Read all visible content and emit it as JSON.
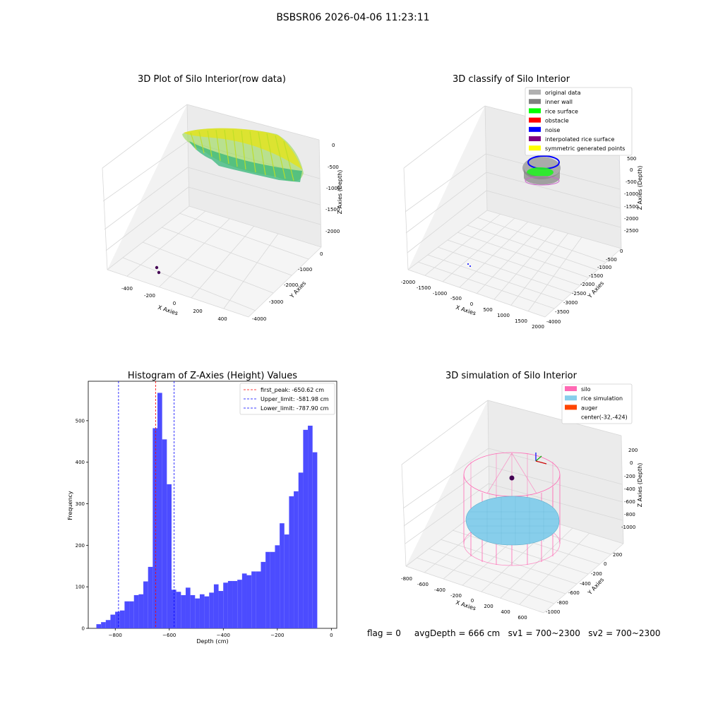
{
  "figure": {
    "suptitle": "BSBSR06 2026-04-06 11:23:11",
    "footer": "flag = 0     avgDepth = 666 cm   sv1 = 700~2300   sv2 = 700~2300"
  },
  "chart_data": [
    {
      "type": "scatter",
      "title": "3D Plot of Silo Interior(row data)",
      "xlabel": "X Axies",
      "ylabel": "Y Axies",
      "zlabel": "Z Axies (Depth)",
      "xticks": [
        "-400",
        "-200",
        "0",
        "200",
        "400"
      ],
      "yticks": [
        "0",
        "-1000",
        "-2000",
        "-3000",
        "-4000"
      ],
      "zticks": [
        "0",
        "-500",
        "-1000",
        "-1500",
        "-2000"
      ],
      "colormap": [
        "#440154",
        "#21918c",
        "#5ec962",
        "#fde725"
      ],
      "outlier_points": [
        {
          "x": -230,
          "y": -3700,
          "z": -2250
        },
        {
          "x": -215,
          "y": -3750,
          "z": -2300
        }
      ]
    },
    {
      "type": "scatter",
      "title": "3D classify of Silo Interior",
      "xlabel": "X Axies",
      "ylabel": "Y Axies",
      "zlabel": "Z Axies (Depth)",
      "xticks": [
        "-2000",
        "-1500",
        "-1000",
        "-500",
        "0",
        "500",
        "1000",
        "1500",
        "2000"
      ],
      "yticks": [
        "0",
        "-500",
        "-1000",
        "-1500",
        "-2000",
        "-2500",
        "-3000",
        "-3500",
        "-4000"
      ],
      "zticks": [
        "500",
        "0",
        "-500",
        "-1000",
        "-1500",
        "-2000",
        "-2500"
      ],
      "legend": [
        {
          "label": "original data",
          "color": "#b0b0b0"
        },
        {
          "label": "inner wall",
          "color": "#808080"
        },
        {
          "label": "rice surface",
          "color": "#00ff00"
        },
        {
          "label": "obstacle",
          "color": "#ff0000"
        },
        {
          "label": "noise",
          "color": "#0000ff"
        },
        {
          "label": "interpolated rice surface",
          "color": "#800080"
        },
        {
          "label": "symmetric generated points",
          "color": "#ffff00"
        }
      ]
    },
    {
      "type": "bar",
      "title": "Histogram of Z-Axies (Height) Values",
      "xlabel": "Depth (cm)",
      "ylabel": "Frequency",
      "xlim": [
        -900,
        20
      ],
      "ylim": [
        0,
        595
      ],
      "xticks": [
        -800,
        -600,
        -400,
        -200,
        0
      ],
      "yticks": [
        0,
        100,
        200,
        300,
        400,
        500
      ],
      "bar_color": "#4c4cff",
      "bin_start": -870,
      "bin_width": 17.4,
      "values": [
        10,
        15,
        20,
        33,
        40,
        43,
        65,
        65,
        80,
        82,
        113,
        148,
        482,
        567,
        455,
        347,
        93,
        88,
        80,
        98,
        80,
        72,
        82,
        77,
        86,
        106,
        90,
        110,
        114,
        114,
        117,
        132,
        128,
        137,
        137,
        160,
        184,
        184,
        200,
        253,
        226,
        318,
        330,
        375,
        478,
        488,
        424
      ],
      "lines": [
        {
          "label": "first_peak: -650.62 cm",
          "x": -650.62,
          "color": "#ff0000"
        },
        {
          "label": "Upper_limit: -581.98 cm",
          "x": -581.98,
          "color": "#0000ff"
        },
        {
          "label": "Lower_limit: -787.90 cm",
          "x": -787.9,
          "color": "#0000ff"
        }
      ]
    },
    {
      "type": "scatter",
      "title": "3D simulation of Silo Interior",
      "xlabel": "X Axies",
      "ylabel": "Y Axies",
      "zlabel": "Z Axies (Depth)",
      "xticks": [
        "-800",
        "-600",
        "-400",
        "-200",
        "0",
        "200",
        "400",
        "600"
      ],
      "yticks": [
        "200",
        "0",
        "-200",
        "-400",
        "-600",
        "-800",
        "-1000"
      ],
      "zticks": [
        "200",
        "0",
        "-200",
        "-400",
        "-600",
        "-800",
        "-1000"
      ],
      "legend": [
        {
          "label": "silo",
          "color": "#ff69b4"
        },
        {
          "label": "rice simulation",
          "color": "#87ceeb"
        },
        {
          "label": "auger",
          "color": "#ff4500"
        },
        {
          "label": "center(-32,-424)",
          "color": ""
        }
      ]
    }
  ]
}
